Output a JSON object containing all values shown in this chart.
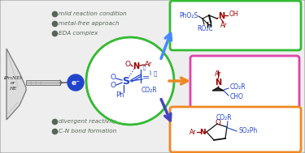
{
  "bg_color": "#eeeeee",
  "border_color": "#aaaaaa",
  "bullet_color": "#556655",
  "bullet_text_color": "#556655",
  "bullets_top": [
    "mild reaction condition",
    "metal-free approach",
    "EDA complex"
  ],
  "bullets_bottom": [
    "divergent reactivity",
    "C-N bond formation"
  ],
  "green_circle_color": "#33bb33",
  "blue_dot_color": "#2244cc",
  "center_mol_color": "#2244cc",
  "dark_red": "#990000",
  "box_green_color": "#33bb33",
  "box_pink_color": "#dd44aa",
  "box_orange_color": "#ee8822",
  "arrow_blue_up_color": "#4488ff",
  "arrow_orange_color": "#ee8822",
  "arrow_blue_down_color": "#4444bb",
  "black": "#111111",
  "white": "#ffffff",
  "gray": "#888888"
}
